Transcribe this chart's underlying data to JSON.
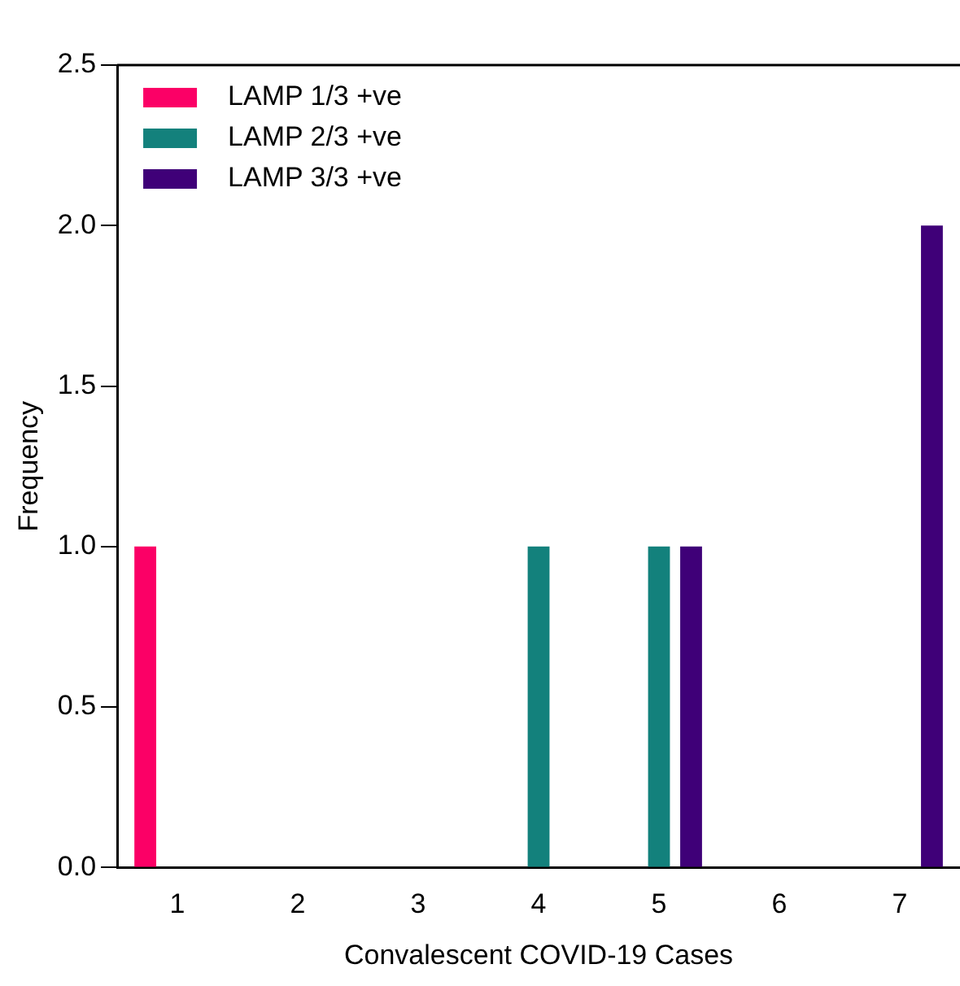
{
  "chart_data": {
    "type": "bar",
    "xlabel": "Convalescent COVID-19 Cases",
    "ylabel": "Frequency",
    "categories": [
      "1",
      "2",
      "3",
      "4",
      "5",
      "6",
      "7"
    ],
    "series": [
      {
        "name": "LAMP 1/3 +ve",
        "color": "#fb0066",
        "values": [
          1,
          0,
          0,
          0,
          0,
          0,
          0
        ]
      },
      {
        "name": "LAMP 2/3 +ve",
        "color": "#13817c",
        "values": [
          0,
          0,
          0,
          1,
          1,
          0,
          0
        ]
      },
      {
        "name": "LAMP 3/3 +ve",
        "color": "#3f0078",
        "values": [
          0,
          0,
          0,
          0,
          1,
          0,
          2
        ]
      }
    ],
    "ylim": [
      0,
      2.5
    ],
    "yticks": [
      {
        "value": 0,
        "label": "0.0"
      },
      {
        "value": 0.5,
        "label": "0.5"
      },
      {
        "value": 1,
        "label": "1.0"
      },
      {
        "value": 1.5,
        "label": "1.5"
      },
      {
        "value": 2,
        "label": "2.0"
      },
      {
        "value": 2.5,
        "label": "2.5"
      }
    ],
    "grid": false,
    "legend": "top left"
  }
}
